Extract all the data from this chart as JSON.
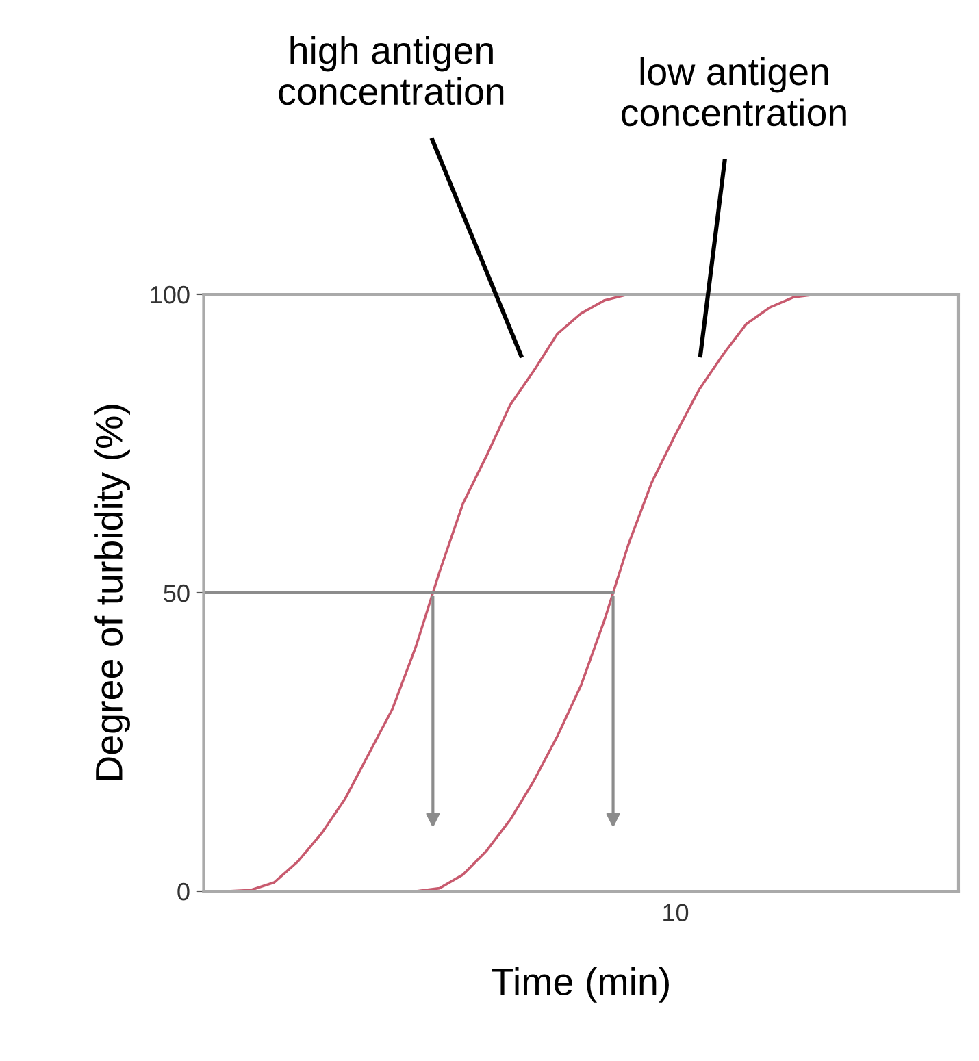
{
  "chart_data": {
    "type": "line",
    "xlabel": "Time (min)",
    "ylabel": "Degree of turbidity (%)",
    "categories": [
      null,
      null,
      null,
      null,
      null,
      null,
      null,
      null,
      null,
      null,
      null,
      null,
      null,
      null,
      null,
      null,
      null,
      null,
      null,
      null,
      null,
      null,
      null,
      null,
      null,
      null,
      null,
      null,
      null,
      null,
      null,
      null,
      null
    ],
    "ylim": [
      0,
      100
    ],
    "yticks": [
      0,
      50,
      100
    ],
    "grid": false,
    "legend": false,
    "series": [
      {
        "color": "#c85a6e",
        "values": [
          null,
          0,
          0.2,
          1.5,
          5,
          9.7,
          15.5,
          23,
          30.5,
          41,
          53.5,
          65,
          73,
          81.5,
          87.2,
          93.4,
          96.8,
          99,
          100,
          null,
          null,
          null,
          null,
          null,
          null,
          null,
          null,
          null,
          null,
          null,
          null,
          null,
          null
        ]
      },
      {
        "color": "#c85a6e",
        "values": [
          null,
          null,
          null,
          null,
          null,
          null,
          null,
          null,
          null,
          0,
          0.5,
          2.8,
          6.8,
          12,
          18.5,
          26,
          34.5,
          45.5,
          58,
          68.5,
          76.5,
          84,
          89.8,
          95,
          97.8,
          99.5,
          100,
          null,
          null,
          null,
          null,
          null,
          null
        ]
      }
    ],
    "ref_lines": [
      {
        "axis": "y",
        "value": 50,
        "color": "#8c8c8c"
      }
    ],
    "annotations": [
      "high antigen\nconcentration",
      "low antigen\nconcentration",
      "10"
    ]
  }
}
